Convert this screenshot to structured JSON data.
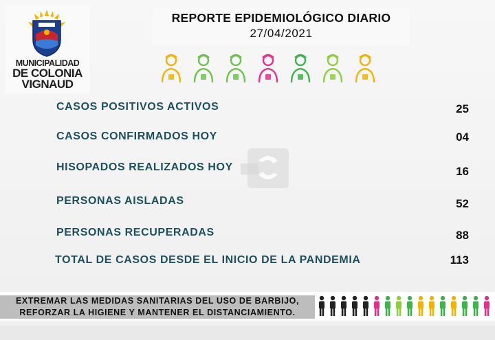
{
  "logo": {
    "line1": "MUNICIPALIDAD",
    "line2": "DE COLONIA",
    "line3": "VIGNAUD"
  },
  "header": {
    "title": "REPORTE EPIDEMIOLÓGICO DIARIO",
    "date": "27/04/2021"
  },
  "workers_icons": [
    "worker-icon",
    "nurse-icon",
    "farmer-icon",
    "teacher-icon",
    "doctor-icon",
    "police-icon",
    "firefighter-icon"
  ],
  "worker_colors": [
    "#f2b400",
    "#6cc24a",
    "#6cc24a",
    "#e62e8b",
    "#3bb54a",
    "#8ccf3a",
    "#f2b400"
  ],
  "rows": [
    {
      "label": "CASOS POSITIVOS ACTIVOS",
      "value": "25"
    },
    {
      "label": "CASOS CONFIRMADOS HOY",
      "value": "04"
    },
    {
      "label": "HISOPADOS REALIZADOS HOY",
      "value": "16"
    },
    {
      "label": "PERSONAS AISLADAS",
      "value": "52"
    },
    {
      "label": "PERSONAS RECUPERADAS",
      "value": "88"
    },
    {
      "label": "TOTAL DE CASOS DESDE EL INICIO DE LA PANDEMIA",
      "value": "113"
    }
  ],
  "footer": {
    "line1": "EXTREMAR LAS MEDIDAS SANITARIAS DEL USO DE BARBIJO,",
    "line2": "REFORZAR LA HIGIENE Y MANTENER EL DISTANCIAMIENTO."
  },
  "people_colors": [
    "#222222",
    "#222222",
    "#222222",
    "#222222",
    "#222222",
    "#e62e8b",
    "#3bb54a",
    "#8ccf3a",
    "#3bb54a",
    "#f2b400",
    "#f2b400",
    "#3bb54a",
    "#f2b400",
    "#3bb54a",
    "#3bb54a",
    "#e62e8b"
  ],
  "colors": {
    "label": "#1d4f5e",
    "footer_bg": "#bdbdbd"
  }
}
